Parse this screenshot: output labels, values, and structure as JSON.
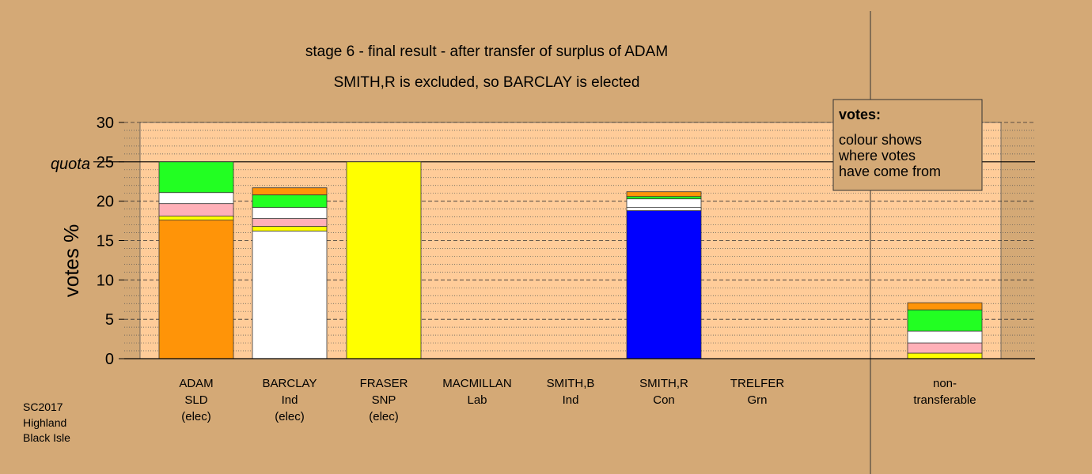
{
  "chart_data": {
    "type": "bar",
    "stacked": true,
    "title": "stage 6 - final result - after transfer of surplus of ADAM",
    "subtitle": "SMITH,R is excluded, so BARCLAY is elected",
    "ylabel": "votes %",
    "ylim": [
      0,
      30
    ],
    "yticks": [
      "0",
      "5",
      "10",
      "15",
      "20",
      "25",
      "30"
    ],
    "quota_label": "quota",
    "quota": 25,
    "candidates": [
      {
        "name": "ADAM",
        "party": "SLD",
        "status": "(elec)"
      },
      {
        "name": "BARCLAY",
        "party": "Ind",
        "status": "(elec)"
      },
      {
        "name": "FRASER",
        "party": "SNP",
        "status": "(elec)"
      },
      {
        "name": "MACMILLAN",
        "party": "Lab",
        "status": ""
      },
      {
        "name": "SMITH,B",
        "party": "Ind",
        "status": ""
      },
      {
        "name": "SMITH,R",
        "party": "Con",
        "status": ""
      },
      {
        "name": "TRELFER",
        "party": "Grn",
        "status": ""
      }
    ],
    "nontransferable": {
      "line1": "non-",
      "line2": "transferable"
    },
    "segments": [
      [
        {
          "c": "#ff9408",
          "v": 17.6
        },
        {
          "c": "#ffff00",
          "v": 0.5
        },
        {
          "c": "#ffb0b8",
          "v": 1.6
        },
        {
          "c": "#ffffff",
          "v": 1.4
        },
        {
          "c": "#22ff22",
          "v": 3.9
        }
      ],
      [
        {
          "c": "#ffffff",
          "v": 16.2
        },
        {
          "c": "#ffff00",
          "v": 0.6
        },
        {
          "c": "#ffb0b8",
          "v": 1.0
        },
        {
          "c": "#ffffff",
          "v": 1.4
        },
        {
          "c": "#22ff22",
          "v": 1.6
        },
        {
          "c": "#ff9408",
          "v": 0.9
        }
      ],
      [
        {
          "c": "#ffff00",
          "v": 25.0
        }
      ],
      [],
      [],
      [
        {
          "c": "#0000ff",
          "v": 18.8
        },
        {
          "c": "#ffffff",
          "v": 0.4
        },
        {
          "c": "#ffffff",
          "v": 1.1
        },
        {
          "c": "#22ff22",
          "v": 0.3
        },
        {
          "c": "#ff9408",
          "v": 0.6
        }
      ],
      [],
      [
        {
          "c": "#ffff00",
          "v": 0.7
        },
        {
          "c": "#ffb0b8",
          "v": 1.3
        },
        {
          "c": "#ffffff",
          "v": 1.5
        },
        {
          "c": "#22ff22",
          "v": 2.7
        },
        {
          "c": "#ff9408",
          "v": 0.9
        }
      ]
    ],
    "legend": {
      "title": "votes:",
      "lines": [
        "colour shows",
        "where votes",
        "have come from"
      ],
      "placement": "top-right"
    },
    "footer": [
      "SC2017",
      "Highland",
      "Black Isle"
    ],
    "colors": {
      "background": "#d4a976",
      "plot": "#ffcc99"
    },
    "grid": true
  }
}
